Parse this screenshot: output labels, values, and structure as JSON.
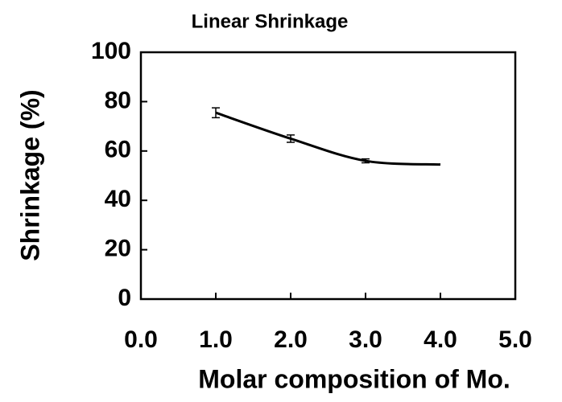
{
  "chart_data": {
    "type": "line",
    "title": "Linear Shrinkage",
    "x_label": "Molar composition of Mo.",
    "y_label": "Shrinkage (%)",
    "x": [
      1,
      2,
      3,
      4
    ],
    "series": [
      {
        "name": "Shrinkage",
        "color": "#000000",
        "values": [
          75.5,
          65,
          56,
          54.5
        ],
        "errors": [
          2,
          1.5,
          0.8,
          null
        ]
      }
    ],
    "xlim": [
      0,
      5
    ],
    "xticks": [
      {
        "value": 0,
        "label": "0.0"
      },
      {
        "value": 1,
        "label": "1.0"
      },
      {
        "value": 2,
        "label": "2.0"
      },
      {
        "value": 3,
        "label": "3.0"
      },
      {
        "value": 4,
        "label": "4.0"
      },
      {
        "value": 5,
        "label": "5.0"
      }
    ],
    "ylim": [
      0,
      100
    ],
    "yticks": [
      0,
      20,
      40,
      60,
      80,
      100
    ],
    "grid": false
  }
}
